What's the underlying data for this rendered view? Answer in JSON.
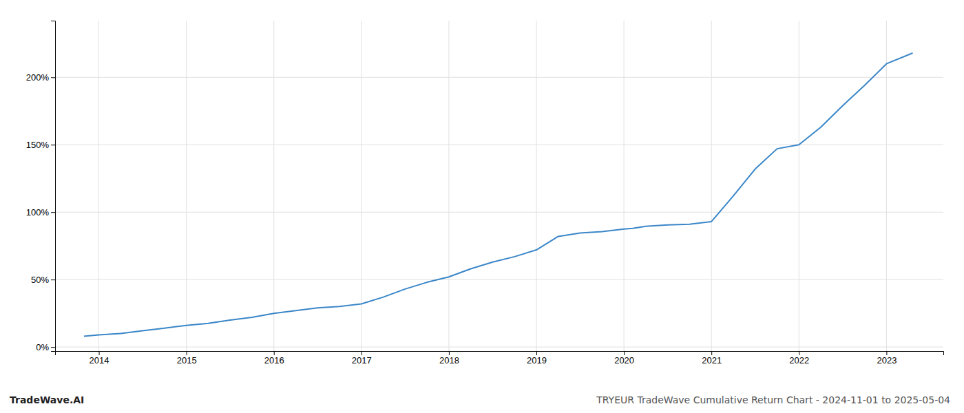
{
  "chart_data": {
    "type": "line",
    "title": "TRYEUR TradeWave Cumulative Return Chart - 2024-11-01 to 2025-05-04",
    "annotations": [
      "TradeWave.AI"
    ],
    "x": [
      2013.83,
      2014.0,
      2014.25,
      2014.5,
      2014.75,
      2015.0,
      2015.25,
      2015.5,
      2015.75,
      2016.0,
      2016.25,
      2016.5,
      2016.75,
      2017.0,
      2017.25,
      2017.5,
      2017.75,
      2018.0,
      2018.25,
      2018.5,
      2018.75,
      2019.0,
      2019.25,
      2019.5,
      2019.75,
      2020.0,
      2020.1,
      2020.25,
      2020.5,
      2020.75,
      2021.0,
      2021.25,
      2021.5,
      2021.75,
      2022.0,
      2022.25,
      2022.5,
      2022.75,
      2023.0,
      2023.3
    ],
    "values": [
      0.08,
      0.09,
      0.1,
      0.12,
      0.14,
      0.16,
      0.175,
      0.2,
      0.22,
      0.25,
      0.27,
      0.29,
      0.3,
      0.32,
      0.37,
      0.43,
      0.48,
      0.52,
      0.58,
      0.63,
      0.67,
      0.72,
      0.82,
      0.845,
      0.855,
      0.875,
      0.88,
      0.895,
      0.905,
      0.91,
      0.93,
      1.12,
      1.32,
      1.47,
      1.5,
      1.63,
      1.79,
      1.94,
      2.1,
      2.18
    ],
    "color": "#3a86c8",
    "xlim": [
      2013.5,
      2023.65
    ],
    "xticks": [
      2014,
      2015,
      2016,
      2017,
      2018,
      2019,
      2020,
      2021,
      2022,
      2023
    ],
    "ylim": [
      -0.03,
      2.42
    ],
    "yticks": [
      {
        "value": 0.0,
        "label": "0%"
      },
      {
        "value": 0.5,
        "label": "50%"
      },
      {
        "value": 1.0,
        "label": "100%"
      },
      {
        "value": 1.5,
        "label": "150%"
      },
      {
        "value": 2.0,
        "label": "200%"
      }
    ],
    "grid": true
  }
}
